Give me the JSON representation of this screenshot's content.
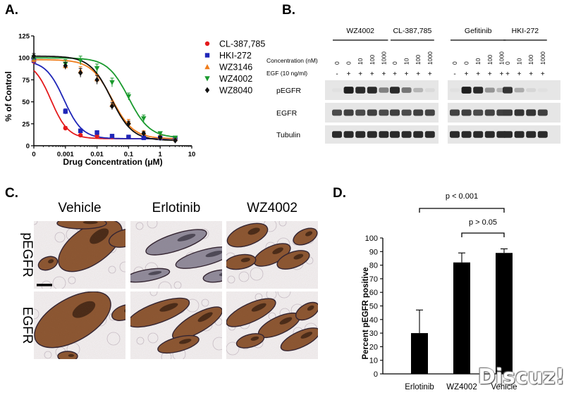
{
  "panels": {
    "a": "A.",
    "b": "B.",
    "c": "C.",
    "d": "D."
  },
  "panel_a": {
    "chart_data": {
      "type": "line",
      "ylabel": "% of Control",
      "xlabel": "Drug  Concentration  (μM)",
      "x_scale": "log",
      "xlim": [
        0.0001,
        10
      ],
      "ylim": [
        0,
        125
      ],
      "yticks": [
        "0",
        "25",
        "50",
        "75",
        "100",
        "125"
      ],
      "xticks": [
        "0",
        "0.001",
        "0.01",
        "0.1",
        "1",
        "10"
      ],
      "series": [
        {
          "name": "CL-387,785",
          "color": "#e41a1c",
          "marker": "circle",
          "x": [
            0.0001,
            0.001,
            0.003,
            0.01,
            0.03,
            0.1,
            0.3,
            1,
            3
          ],
          "y": [
            96,
            20,
            12,
            11,
            10,
            10,
            9,
            9,
            8
          ],
          "err": [
            2,
            2,
            1,
            1,
            1,
            1,
            1,
            1,
            1
          ],
          "ic50": 0.00035,
          "hill": 1.6
        },
        {
          "name": "HKI-272",
          "color": "#1f26b8",
          "marker": "square",
          "x": [
            0.0001,
            0.001,
            0.003,
            0.01,
            0.03,
            0.1,
            0.3,
            1,
            3
          ],
          "y": [
            97,
            39,
            17,
            15,
            11,
            10,
            9,
            9,
            8
          ],
          "err": [
            2,
            3,
            2,
            2,
            1,
            1,
            1,
            1,
            1
          ],
          "ic50": 0.0009,
          "hill": 1.5
        },
        {
          "name": "WZ3146",
          "color": "#f07c1a",
          "marker": "triangle-up",
          "x": [
            0.0001,
            0.001,
            0.003,
            0.01,
            0.03,
            0.1,
            0.3,
            1,
            3
          ],
          "y": [
            98,
            91,
            85,
            76,
            47,
            27,
            15,
            10,
            8
          ],
          "err": [
            3,
            4,
            5,
            5,
            4,
            3,
            2,
            2,
            1
          ],
          "ic50": 0.03,
          "hill": 1.3
        },
        {
          "name": "WZ4002",
          "color": "#1a9a2e",
          "marker": "triangle-down",
          "x": [
            0.0001,
            0.001,
            0.003,
            0.01,
            0.03,
            0.1,
            0.3,
            1,
            3
          ],
          "y": [
            100,
            93,
            97,
            88,
            72,
            56,
            31,
            14,
            9
          ],
          "err": [
            3,
            5,
            5,
            5,
            5,
            4,
            4,
            2,
            1
          ],
          "ic50": 0.1,
          "hill": 1.3
        },
        {
          "name": "WZ8040",
          "color": "#111111",
          "marker": "diamond",
          "x": [
            0.0001,
            0.001,
            0.003,
            0.01,
            0.03,
            0.1,
            0.3,
            1,
            3
          ],
          "y": [
            102,
            91,
            83,
            75,
            45,
            25,
            14,
            9,
            6
          ],
          "err": [
            3,
            4,
            5,
            5,
            4,
            3,
            2,
            2,
            1
          ],
          "ic50": 0.028,
          "hill": 1.3
        }
      ]
    }
  },
  "panel_b": {
    "row_labels": {
      "conc": "Concentration (nM)",
      "egf": "EGF (10 ng/ml)"
    },
    "groups": [
      "WZ4002",
      "CL-387,785",
      "Gefitinib",
      "HKI-272"
    ],
    "conc_values": [
      "0",
      "0",
      "10",
      "100",
      "1000",
      "0",
      "10",
      "100",
      "1000",
      "0",
      "0",
      "10",
      "100",
      "1000",
      "0",
      "10",
      "100",
      "1000"
    ],
    "egf_values": [
      "-",
      "+",
      "+",
      "+",
      "+",
      "+",
      "+",
      "+",
      "+",
      "-",
      "+",
      "+",
      "+",
      "+",
      "+",
      "+",
      "+",
      "+"
    ],
    "blot_labels": [
      "pEGFR",
      "EGFR",
      "Tubulin"
    ],
    "pegfr_intensity": [
      0.05,
      0.95,
      0.9,
      0.9,
      0.5,
      0.9,
      0.55,
      0.25,
      0.08,
      0.05,
      0.95,
      0.9,
      0.4,
      0.25,
      0.85,
      0.3,
      0.1,
      0.05
    ],
    "egfr_intensity": [
      0.75,
      0.8,
      0.75,
      0.8,
      0.75,
      0.8,
      0.75,
      0.8,
      0.78,
      0.78,
      0.8,
      0.75,
      0.78,
      0.8,
      0.82,
      0.85,
      0.85,
      0.8
    ],
    "tubulin_intensity": [
      0.9,
      0.9,
      0.9,
      0.9,
      0.9,
      0.9,
      0.9,
      0.9,
      0.9,
      0.9,
      0.9,
      0.9,
      0.9,
      0.9,
      0.9,
      0.9,
      0.9,
      0.9
    ]
  },
  "panel_c": {
    "columns": [
      "Vehicle",
      "Erlotinib",
      "WZ4002"
    ],
    "rows": [
      "pEGFR",
      "EGFR"
    ]
  },
  "panel_d": {
    "chart_data": {
      "type": "bar",
      "categories": [
        "Erlotinib",
        "WZ4002",
        "Vehicle"
      ],
      "values": [
        30,
        82,
        89
      ],
      "errors": [
        17,
        7,
        3
      ],
      "ylabel": "Percent pEGFR positive",
      "ylim": [
        0,
        100
      ],
      "yticks": [
        "0",
        "10",
        "20",
        "30",
        "40",
        "50",
        "60",
        "70",
        "80",
        "90",
        "100"
      ],
      "annotations": [
        "p < 0.001",
        "p > 0.05"
      ]
    }
  },
  "watermark": "Discuz!"
}
